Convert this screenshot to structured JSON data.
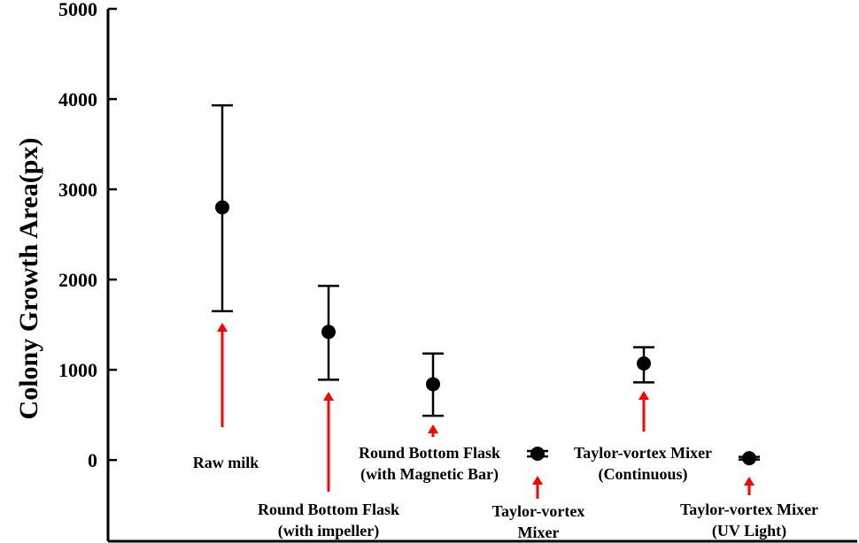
{
  "chart_data": {
    "type": "scatter",
    "title": "",
    "xlabel": "",
    "ylabel": "Colony Growth Area(px)",
    "ylim": [
      -900,
      5000
    ],
    "yticks": [
      0,
      1000,
      2000,
      3000,
      4000,
      5000
    ],
    "grid": false,
    "legend": "none",
    "colors": {
      "point": "#000000",
      "errorbar": "#000000",
      "arrow": "#ff0000"
    },
    "points": [
      {
        "label": [
          "Raw milk"
        ],
        "mean": 2800,
        "err_low": 1650,
        "err_high": 3930
      },
      {
        "label": [
          "Round Bottom Flask",
          "(with impeller)"
        ],
        "mean": 1420,
        "err_low": 890,
        "err_high": 1930
      },
      {
        "label": [
          "Round Bottom Flask",
          "(with Magnetic Bar)"
        ],
        "mean": 840,
        "err_low": 490,
        "err_high": 1180
      },
      {
        "label": [
          "Taylor-vortex",
          "Mixer"
        ],
        "mean": 70,
        "err_low": 40,
        "err_high": 100
      },
      {
        "label": [
          "Taylor-vortex Mixer",
          "(Continuous)"
        ],
        "mean": 1070,
        "err_low": 860,
        "err_high": 1250
      },
      {
        "label": [
          "Taylor-vortex Mixer",
          "(UV Light)"
        ],
        "mean": 20,
        "err_low": 5,
        "err_high": 35
      }
    ]
  }
}
